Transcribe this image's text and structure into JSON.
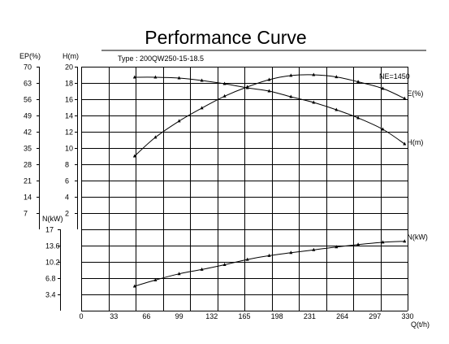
{
  "chart_data": {
    "type": "line",
    "title": "Performance  Curve",
    "subtitle": "Type :   200QW250-15-18.5",
    "annotation": "NE=1450",
    "xlabel": "Q(t/h)",
    "xlim": [
      0,
      330
    ],
    "x_ticks": [
      "0",
      "33",
      "66",
      "99",
      "132",
      "165",
      "198",
      "231",
      "264",
      "297",
      "330"
    ],
    "grid": true,
    "axes": {
      "ep": {
        "label": "EP(%)",
        "min": 0,
        "max": 70,
        "ticks": [
          "70",
          "63",
          "56",
          "49",
          "42",
          "35",
          "28",
          "21",
          "14",
          "7"
        ]
      },
      "h": {
        "label": "H(m)",
        "min": 0,
        "max": 20,
        "ticks": [
          "20",
          "18",
          "16",
          "14",
          "12",
          "10",
          "8",
          "6",
          "4",
          "2"
        ]
      },
      "n": {
        "label": "N(kW)",
        "min": 0,
        "max": 17,
        "ticks": [
          "17",
          "13.6",
          "10.2",
          "6.8",
          "3.4"
        ]
      }
    },
    "series": [
      {
        "name": "H(m)",
        "axis": "h",
        "x": [
          54,
          75,
          99,
          122,
          145,
          168,
          190,
          212,
          235,
          258,
          280,
          305,
          327
        ],
        "y": [
          18.7,
          18.7,
          18.6,
          18.3,
          17.9,
          17.4,
          17.0,
          16.3,
          15.6,
          14.7,
          13.7,
          12.3,
          10.5
        ]
      },
      {
        "name": "E(%)",
        "axis": "ep",
        "x": [
          54,
          75,
          99,
          122,
          145,
          168,
          190,
          212,
          235,
          258,
          280,
          305,
          327
        ],
        "y": [
          31.5,
          39.6,
          46.6,
          52.2,
          57.3,
          61.3,
          64.4,
          66.2,
          66.5,
          65.6,
          63.5,
          60.6,
          56.3
        ]
      },
      {
        "name": "N(kW)",
        "axis": "n",
        "x": [
          54,
          75,
          99,
          122,
          145,
          168,
          190,
          212,
          235,
          258,
          280,
          305,
          327
        ],
        "y": [
          5.1,
          6.4,
          7.7,
          8.6,
          9.6,
          10.7,
          11.5,
          12.1,
          12.7,
          13.3,
          13.8,
          14.3,
          14.5
        ]
      }
    ]
  }
}
